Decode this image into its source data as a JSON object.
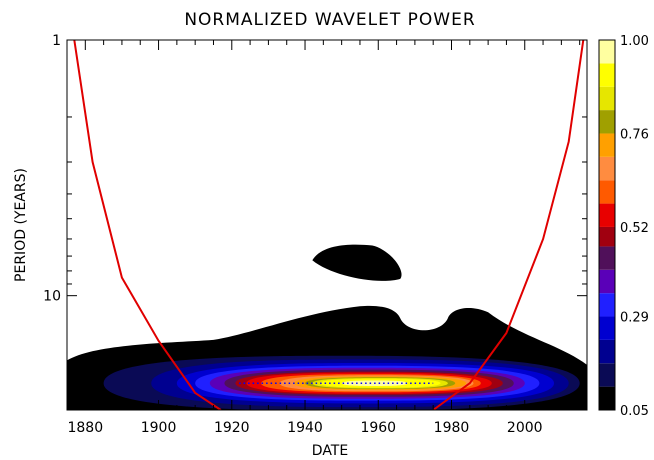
{
  "chart_data": {
    "type": "heatmap",
    "title": "NORMALIZED WAVELET POWER",
    "xlabel": "DATE",
    "ylabel": "PERIOD (YEARS)",
    "xlim": [
      1875,
      2017
    ],
    "ylim_period": [
      1,
      28
    ],
    "y_scale": "log",
    "y_reversed": true,
    "xticks": [
      1880,
      1900,
      1920,
      1940,
      1960,
      1980,
      2000
    ],
    "yticks": [
      1,
      10
    ],
    "colorbar": {
      "range": [
        0.05,
        1.0
      ],
      "tick_labels": [
        "0.05",
        "0.29",
        "0.52",
        "0.76",
        "1.00"
      ],
      "tick_values": [
        0.05,
        0.29,
        0.52,
        0.76,
        1.0
      ],
      "levels": [
        {
          "min": 0.05,
          "color": "#000000"
        },
        {
          "min": 0.11,
          "color": "#0a0a55"
        },
        {
          "min": 0.17,
          "color": "#000090"
        },
        {
          "min": 0.23,
          "color": "#0000d0"
        },
        {
          "min": 0.29,
          "color": "#2020ff"
        },
        {
          "min": 0.35,
          "color": "#5a00b8"
        },
        {
          "min": 0.41,
          "color": "#50105a"
        },
        {
          "min": 0.47,
          "color": "#a00010"
        },
        {
          "min": 0.52,
          "color": "#e80000"
        },
        {
          "min": 0.58,
          "color": "#ff5a00"
        },
        {
          "min": 0.64,
          "color": "#ff8c40"
        },
        {
          "min": 0.7,
          "color": "#ffa000"
        },
        {
          "min": 0.76,
          "color": "#a0a000"
        },
        {
          "min": 0.82,
          "color": "#e6e600"
        },
        {
          "min": 0.88,
          "color": "#ffff00"
        },
        {
          "min": 0.94,
          "color": "#ffffa0"
        }
      ]
    },
    "power_contours": [
      {
        "level": 0.05,
        "color": "#000000",
        "x_range": [
          1875,
          2017
        ],
        "period_center": 22,
        "period_half_width_factor": 1.35
      },
      {
        "level": 0.11,
        "color": "#0a0a55",
        "x_range": [
          1885,
          2015
        ],
        "period_center": 22,
        "period_half_width_factor": 1.28
      },
      {
        "level": 0.17,
        "color": "#000090",
        "x_range": [
          1898,
          2012
        ],
        "period_center": 22,
        "period_half_width_factor": 1.24
      },
      {
        "level": 0.23,
        "color": "#0000d0",
        "x_range": [
          1905,
          2008
        ],
        "period_center": 22,
        "period_half_width_factor": 1.2
      },
      {
        "level": 0.29,
        "color": "#2020ff",
        "x_range": [
          1910,
          2004
        ],
        "period_center": 22,
        "period_half_width_factor": 1.17
      },
      {
        "level": 0.35,
        "color": "#5a00b8",
        "x_range": [
          1914,
          2000
        ],
        "period_center": 22,
        "period_half_width_factor": 1.15
      },
      {
        "level": 0.41,
        "color": "#50105a",
        "x_range": [
          1918,
          1997
        ],
        "period_center": 22,
        "period_half_width_factor": 1.13
      },
      {
        "level": 0.47,
        "color": "#a00010",
        "x_range": [
          1921,
          1994
        ],
        "period_center": 22,
        "period_half_width_factor": 1.11
      },
      {
        "level": 0.52,
        "color": "#e80000",
        "x_range": [
          1924,
          1991
        ],
        "period_center": 22,
        "period_half_width_factor": 1.1
      },
      {
        "level": 0.58,
        "color": "#ff5a00",
        "x_range": [
          1928,
          1988
        ],
        "period_center": 22,
        "period_half_width_factor": 1.085
      },
      {
        "level": 0.64,
        "color": "#ff8c40",
        "x_range": [
          1933,
          1986
        ],
        "period_center": 22,
        "period_half_width_factor": 1.075
      },
      {
        "level": 0.7,
        "color": "#ffa000",
        "x_range": [
          1937,
          1984
        ],
        "period_center": 22,
        "period_half_width_factor": 1.065
      },
      {
        "level": 0.76,
        "color": "#a0a000",
        "x_range": [
          1940,
          1981
        ],
        "period_center": 22,
        "period_half_width_factor": 1.055
      },
      {
        "level": 0.82,
        "color": "#e6e600",
        "x_range": [
          1942,
          1979
        ],
        "period_center": 22,
        "period_half_width_factor": 1.048
      },
      {
        "level": 0.88,
        "color": "#ffff00",
        "x_range": [
          1944,
          1977
        ],
        "period_center": 22,
        "period_half_width_factor": 1.04
      },
      {
        "level": 0.94,
        "color": "#ffffa0",
        "x_range": [
          1950,
          1968
        ],
        "period_center": 22,
        "period_half_width_factor": 1.025
      }
    ],
    "isolated_blob": {
      "level": 0.05,
      "color": "#000000",
      "x_range": [
        1942,
        1966
      ],
      "period_range": [
        6.6,
        8.6
      ]
    },
    "ridge_line": {
      "style": "dotted",
      "color": "#0000ff",
      "x_range": [
        1922,
        1975
      ],
      "period": 22
    },
    "cone_of_influence": {
      "color": "#e00000",
      "left": {
        "x": [
          1877,
          1882,
          1890,
          1900,
          1910,
          1917
        ],
        "period": [
          1,
          3,
          8.5,
          15,
          24,
          28
        ]
      },
      "right": {
        "x": [
          1975,
          1985,
          1995,
          2005,
          2012,
          2016
        ],
        "period": [
          28,
          22,
          14,
          6,
          2.5,
          1
        ]
      }
    }
  }
}
